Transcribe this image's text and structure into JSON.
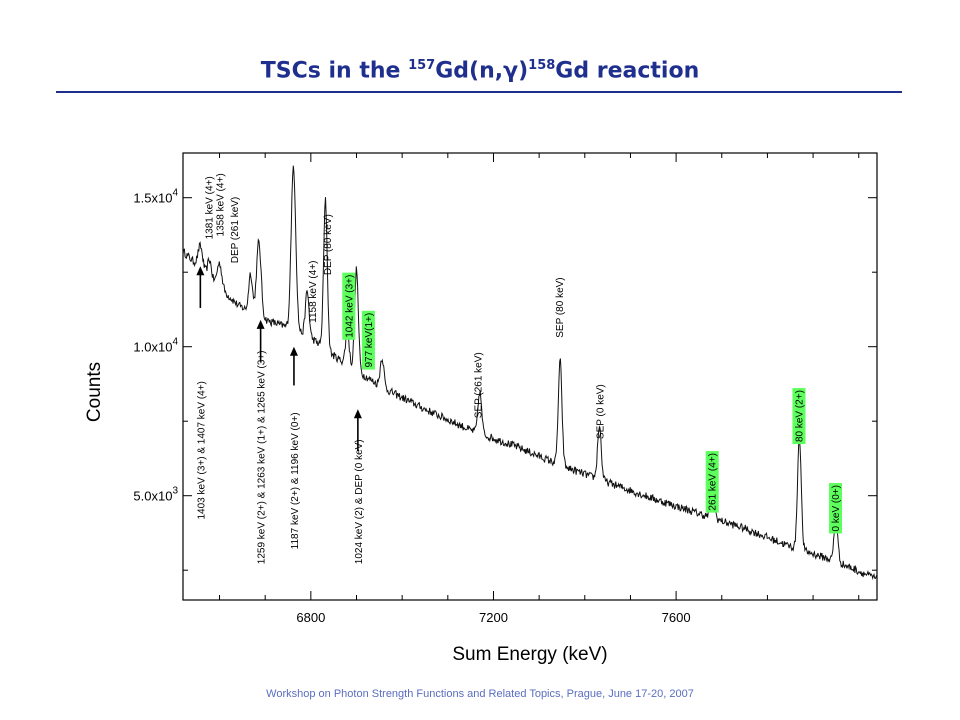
{
  "slide": {
    "title_main": "TSCs in the ",
    "title_sup1": "157",
    "title_mid": "Gd(n,γ)",
    "title_sup2": "158",
    "title_end": "Gd reaction",
    "footer": "Workshop on Photon Strength Functions and Related Topics, Prague, June 17-20, 2007",
    "accent_color": "#1f2f8e",
    "highlight_color": "#5cff5c"
  },
  "chart_data": {
    "type": "line",
    "xlabel": "Sum Energy (keV)",
    "ylabel": "Counts",
    "xlim": [
      6520,
      8040
    ],
    "ylim": [
      1500,
      16500
    ],
    "x_ticks": [
      {
        "value": 6800,
        "label": "6800"
      },
      {
        "value": 7200,
        "label": "7200"
      },
      {
        "value": 7600,
        "label": "7600"
      }
    ],
    "y_ticks": [
      {
        "value": 5000,
        "mantissa": "5.0x10",
        "exp": "3"
      },
      {
        "value": 10000,
        "mantissa": "1.0x10",
        "exp": "4"
      },
      {
        "value": 15000,
        "mantissa": "1.5x10",
        "exp": "4"
      }
    ],
    "background": [
      [
        6520,
        13200
      ],
      [
        6580,
        12300
      ],
      [
        6640,
        11400
      ],
      [
        6700,
        10900
      ],
      [
        6760,
        10600
      ],
      [
        6800,
        10300
      ],
      [
        6850,
        9700
      ],
      [
        6900,
        9200
      ],
      [
        6960,
        8600
      ],
      [
        7050,
        7900
      ],
      [
        7150,
        7200
      ],
      [
        7250,
        6650
      ],
      [
        7350,
        6000
      ],
      [
        7450,
        5450
      ],
      [
        7550,
        4900
      ],
      [
        7650,
        4400
      ],
      [
        7750,
        3900
      ],
      [
        7850,
        3300
      ],
      [
        7950,
        2800
      ],
      [
        8040,
        2200
      ]
    ],
    "peaks": [
      {
        "e": 6558,
        "h": 750,
        "w": 5
      },
      {
        "e": 6578,
        "h": 600,
        "w": 4
      },
      {
        "e": 6600,
        "h": 800,
        "w": 5
      },
      {
        "e": 6668,
        "h": 1300,
        "w": 4
      },
      {
        "e": 6686,
        "h": 2500,
        "w": 5
      },
      {
        "e": 6762,
        "h": 5500,
        "w": 5
      },
      {
        "e": 6792,
        "h": 1500,
        "w": 4
      },
      {
        "e": 6832,
        "h": 5000,
        "w": 4
      },
      {
        "e": 6880,
        "h": 1100,
        "w": 4
      },
      {
        "e": 6900,
        "h": 3400,
        "w": 4
      },
      {
        "e": 6956,
        "h": 1000,
        "w": 4
      },
      {
        "e": 7170,
        "h": 1400,
        "w": 4
      },
      {
        "e": 7346,
        "h": 3500,
        "w": 4
      },
      {
        "e": 7432,
        "h": 1800,
        "w": 4
      },
      {
        "e": 7680,
        "h": 1100,
        "w": 4
      },
      {
        "e": 7870,
        "h": 3800,
        "w": 4
      },
      {
        "e": 7950,
        "h": 1400,
        "w": 4
      }
    ],
    "annotations": [
      {
        "text": "1403 keV (3+) & 1407 keV (4+)",
        "e": 6558,
        "ylow": 4200,
        "highlight": false
      },
      {
        "text": "1381 keV (4+)",
        "e": 6576,
        "ylow": 13600,
        "highlight": false
      },
      {
        "text": "1358 keV (4+)",
        "e": 6600,
        "ylow": 13700,
        "highlight": false
      },
      {
        "text": "DEP (261 keV)",
        "e": 6632,
        "ylow": 12800,
        "highlight": false
      },
      {
        "text": "1259 keV (2+) & 1263 keV (1+) & 1265 keV (3+)",
        "e": 6690,
        "ylow": 2700,
        "highlight": false
      },
      {
        "text": "1187 keV (2+) & 1196 keV (0+)",
        "e": 6763,
        "ylow": 3200,
        "highlight": false
      },
      {
        "text": "1158 keV (4+)",
        "e": 6802,
        "ylow": 10800,
        "highlight": false
      },
      {
        "text": "DEP (80 keV)",
        "e": 6835,
        "ylow": 12400,
        "highlight": false
      },
      {
        "text": "1042 keV (3+)",
        "e": 6882,
        "ylow": 10300,
        "highlight": true
      },
      {
        "text": "977 keV(1+)",
        "e": 6925,
        "ylow": 9300,
        "highlight": true
      },
      {
        "text": "1024 keV (2) & DEP (0 keV)",
        "e": 6903,
        "ylow": 2700,
        "highlight": false
      },
      {
        "text": "SEP (261 keV)",
        "e": 7165,
        "ylow": 7600,
        "highlight": false
      },
      {
        "text": "SEP (80 keV)",
        "e": 7343,
        "ylow": 10300,
        "highlight": false
      },
      {
        "text": "SEP (0 keV)",
        "e": 7432,
        "ylow": 6900,
        "highlight": false
      },
      {
        "text": "261 keV (4+)",
        "e": 7678,
        "ylow": 4500,
        "highlight": true
      },
      {
        "text": "80 keV (2+)",
        "e": 7868,
        "ylow": 6800,
        "highlight": true
      },
      {
        "text": "0 keV (0+)",
        "e": 7948,
        "ylow": 3800,
        "highlight": true
      }
    ],
    "arrows": [
      {
        "e": 6558,
        "from": 11300,
        "to": 12700
      },
      {
        "e": 6690,
        "from": 9500,
        "to": 10900
      },
      {
        "e": 6763,
        "from": 8700,
        "to": 10000
      },
      {
        "e": 6903,
        "from": 6500,
        "to": 7900
      }
    ]
  }
}
